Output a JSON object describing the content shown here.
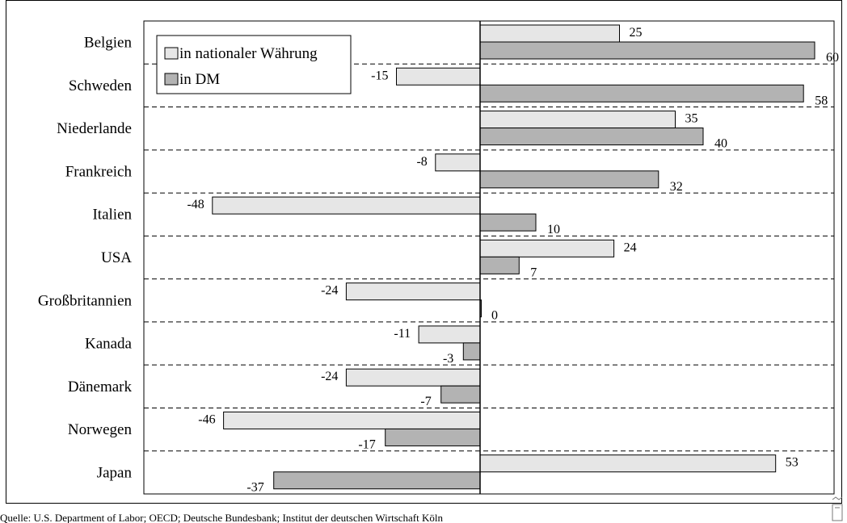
{
  "chart_data": {
    "type": "bar",
    "orientation": "horizontal",
    "categories": [
      "Belgien",
      "Schweden",
      "Niederlande",
      "Frankreich",
      "Italien",
      "USA",
      "Großbritannien",
      "Kanada",
      "Dänemark",
      "Norwegen",
      "Japan"
    ],
    "series": [
      {
        "name": "in nationaler Währung",
        "values": [
          25,
          -15,
          35,
          -8,
          -48,
          24,
          -24,
          -11,
          -24,
          -46,
          53
        ]
      },
      {
        "name": "in DM",
        "values": [
          60,
          58,
          40,
          32,
          10,
          7,
          0,
          -3,
          -7,
          -17,
          -37
        ]
      }
    ],
    "xlim": [
      -60,
      65
    ],
    "grid": "dashed separators between categories",
    "legend": "top-left",
    "colors": {
      "series_0": "#e6e6e6",
      "series_1": "#b3b3b3",
      "outline": "#000000"
    }
  },
  "footer": {
    "source": "Quelle: U.S. Department of Labor; OECD; Deutsche Bundesbank; Institut der deutschen Wirtschaft Köln"
  }
}
